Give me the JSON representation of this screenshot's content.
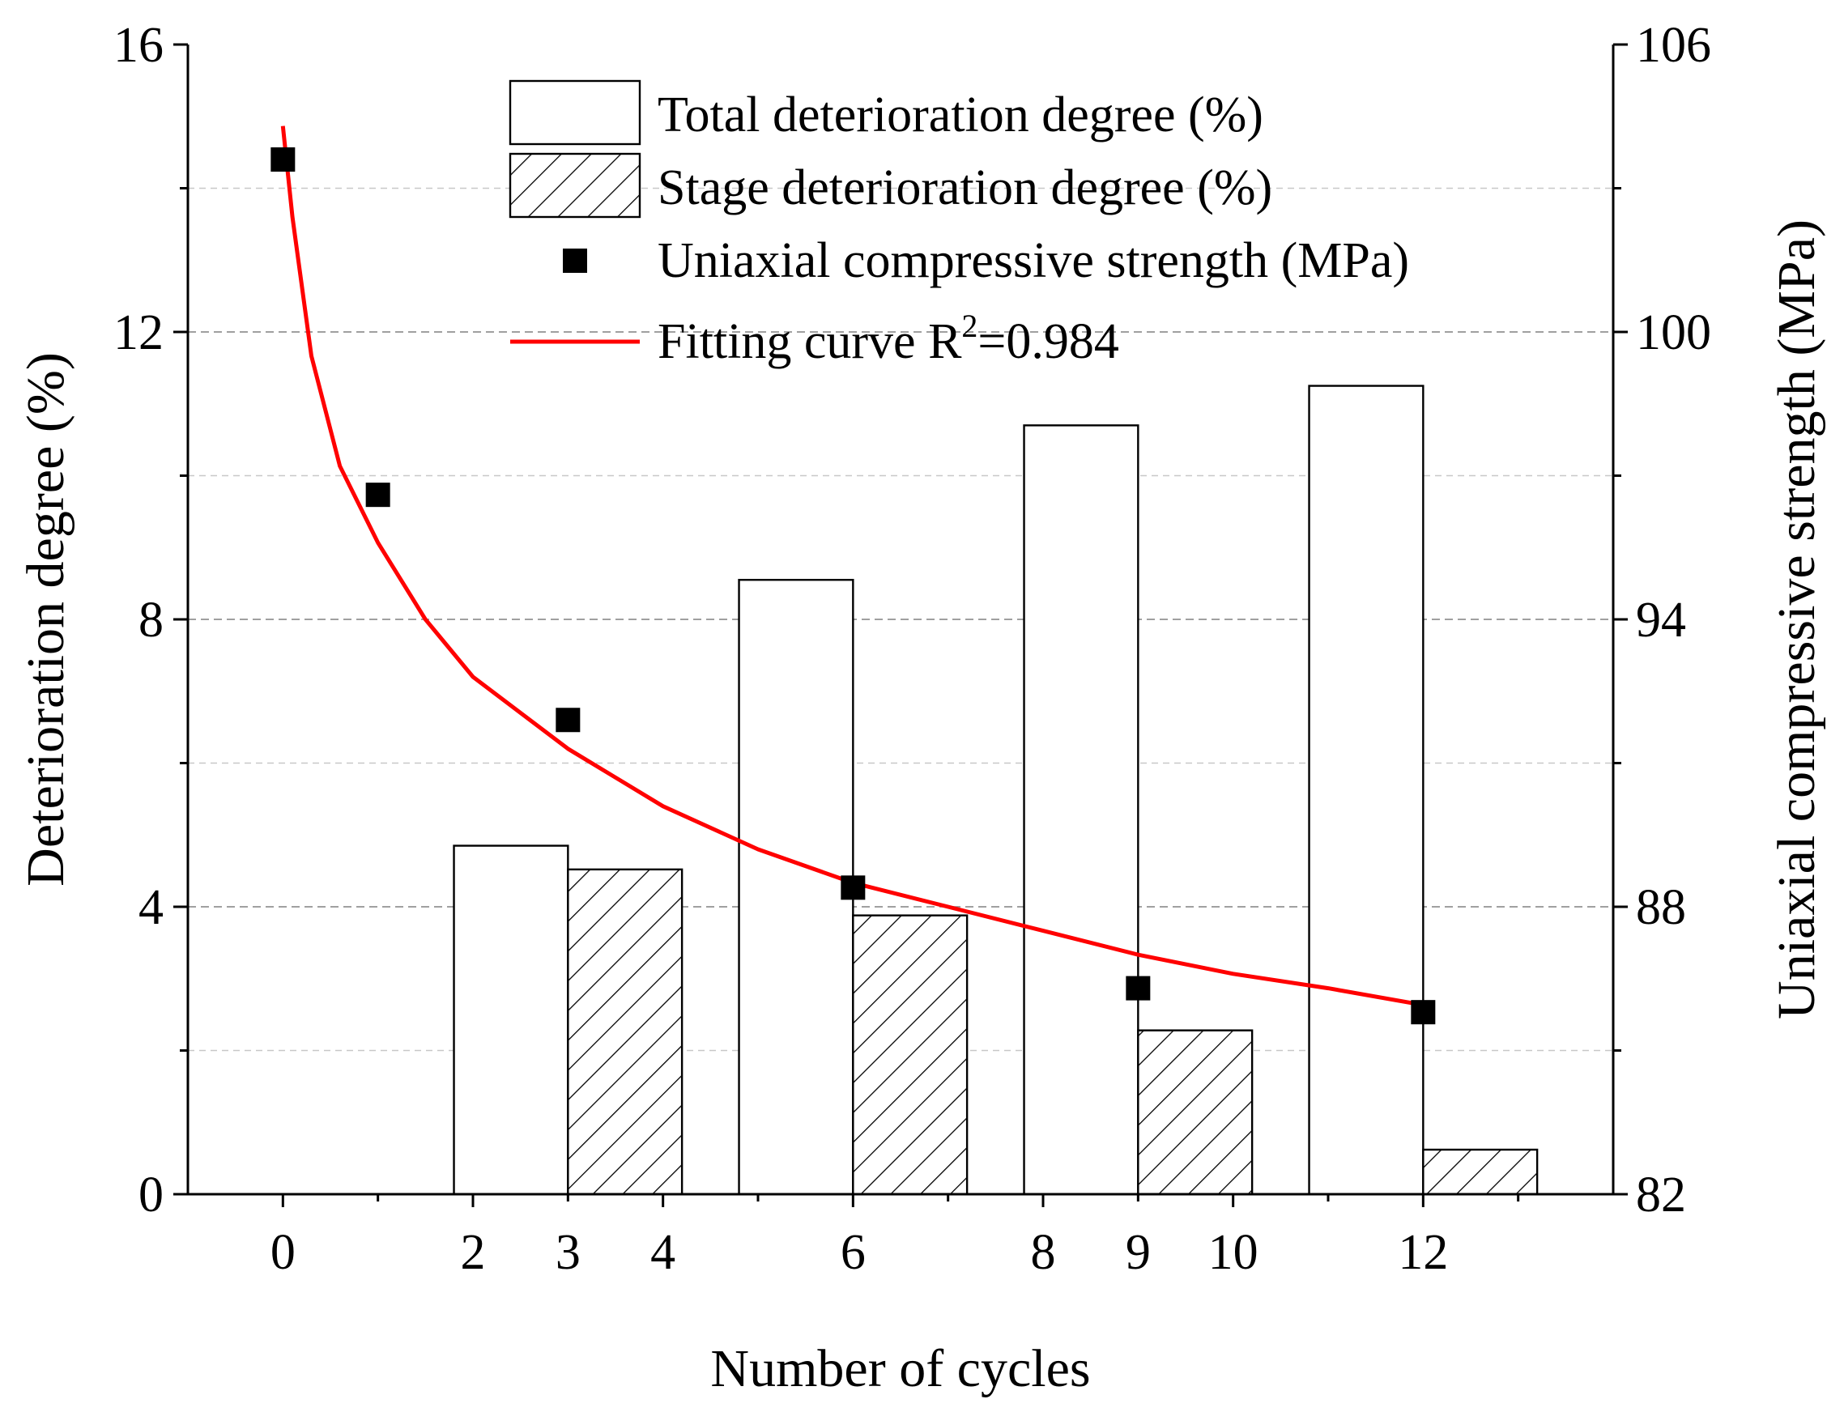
{
  "chart_data": {
    "type": "bar",
    "xlabel": "Number of cycles",
    "ylabel_left": "Deterioration degree (%)",
    "ylabel_right": "Uniaxial compressive strength (MPa)",
    "x_range": [
      -1,
      14
    ],
    "x_ticks": [
      0,
      2,
      3,
      4,
      6,
      8,
      9,
      10,
      12
    ],
    "y_left_range": [
      0,
      16
    ],
    "y_left_ticks": [
      0,
      4,
      8,
      12,
      16
    ],
    "y_right_range": [
      82,
      106
    ],
    "y_right_ticks": [
      82,
      88,
      94,
      100,
      106
    ],
    "grid": "horizontal dashed",
    "legend_position": "top-center",
    "legend": {
      "total": "Total deterioration degree (%)",
      "stage": "Stage deterioration degree (%)",
      "ucs": "Uniaxial compressive strength (MPa)",
      "fit_prefix": "Fitting curve R",
      "fit_sup": "2",
      "fit_suffix": "=0.984"
    },
    "series": [
      {
        "name": "Total deterioration degree (%)",
        "axis": "left",
        "style": "open-bar",
        "x": [
          3,
          6,
          9,
          12
        ],
        "values": [
          4.85,
          8.55,
          10.7,
          11.25
        ]
      },
      {
        "name": "Stage deterioration degree (%)",
        "axis": "left",
        "style": "hatched-bar",
        "x": [
          3,
          6,
          9,
          12
        ],
        "values": [
          4.52,
          3.88,
          2.28,
          0.62
        ]
      },
      {
        "name": "Uniaxial compressive strength (MPa)",
        "axis": "right",
        "style": "square-marker",
        "x": [
          0,
          1,
          3,
          6,
          9,
          12
        ],
        "values": [
          103.6,
          96.6,
          91.9,
          88.4,
          86.3,
          85.8
        ]
      },
      {
        "name": "Fitting curve R2=0.984",
        "axis": "right",
        "style": "line",
        "color": "#ff0000",
        "x": [
          0,
          0.1,
          0.3,
          0.6,
          1,
          1.5,
          2,
          3,
          4,
          5,
          6,
          7,
          8,
          9,
          10,
          11,
          12
        ],
        "values": [
          104.3,
          102.4,
          99.5,
          97.2,
          95.6,
          94.0,
          92.8,
          91.3,
          90.1,
          89.2,
          88.5,
          88.0,
          87.5,
          87.0,
          86.6,
          86.3,
          85.95
        ]
      }
    ]
  }
}
